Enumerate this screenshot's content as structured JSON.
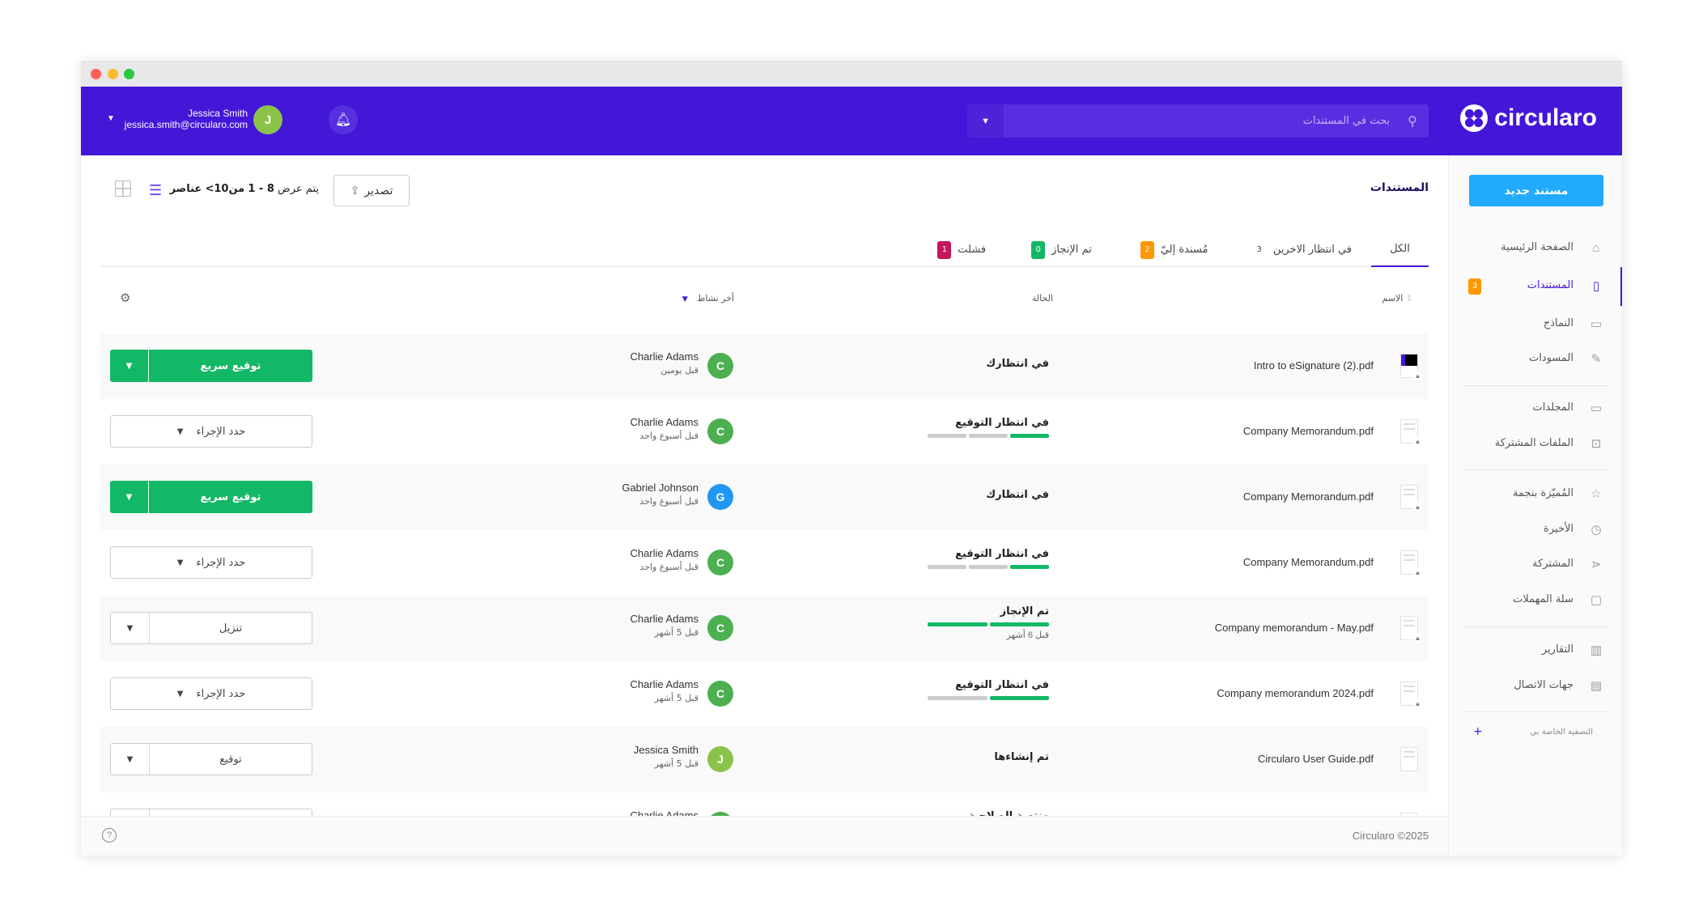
{
  "header": {
    "logo": "circularo",
    "search_placeholder": "بحث في المستندات",
    "user_name": "Jessica Smith",
    "user_email": "jessica.smith@circularo.com",
    "user_initial": "J"
  },
  "sidebar": {
    "new_document": "مستند جديد",
    "items": [
      {
        "label": "الصفحة الرئيسية",
        "icon": "home-icon",
        "glyph": "⌂"
      },
      {
        "label": "المستندات",
        "icon": "document-icon",
        "glyph": "▯",
        "active": true,
        "badge": "3"
      },
      {
        "label": "النماذج",
        "icon": "template-icon",
        "glyph": "▭"
      },
      {
        "label": "المسودات",
        "icon": "edit-icon",
        "glyph": "✎"
      },
      {
        "label": "المجلدات",
        "icon": "folder-icon",
        "glyph": "▭"
      },
      {
        "label": "الملفات المشتركة",
        "icon": "shared-folder-icon",
        "glyph": "⊡"
      },
      {
        "label": "المُميّزة بنجمة",
        "icon": "star-icon",
        "glyph": "☆"
      },
      {
        "label": "الأخيرة",
        "icon": "clock-icon",
        "glyph": "◷"
      },
      {
        "label": "المشتركة",
        "icon": "share-icon",
        "glyph": "⋖"
      },
      {
        "label": "سلة المهملات",
        "icon": "trash-icon",
        "glyph": "▢"
      },
      {
        "label": "التقارير",
        "icon": "chart-icon",
        "glyph": "▥"
      },
      {
        "label": "جهات الاتصال",
        "icon": "contact-card-icon",
        "glyph": "▤"
      }
    ],
    "my_filters": "التصفية الخاصة بي"
  },
  "main": {
    "title": "المستندات",
    "export": "تصدير",
    "count_prefix": "يتم عرض",
    "count_range": "8 - 1",
    "count_of": "من10>",
    "count_suffix": "عناصر",
    "tabs": [
      {
        "label": "الكل",
        "active": true
      },
      {
        "label": "في انتظار الاخرين",
        "count": "3",
        "color": ""
      },
      {
        "label": "مُسندة إليّ",
        "count": "2",
        "color": "#ff9800"
      },
      {
        "label": "تم الإنجاز",
        "count": "0",
        "color": "#13b866"
      },
      {
        "label": "فشلت",
        "count": "1",
        "color": "#c2185b"
      }
    ],
    "columns": {
      "name": "الاسم",
      "status": "الحالة",
      "activity": "أخر نشاط"
    },
    "rows": [
      {
        "file": "Intro to eSignature (2).pdf",
        "status": "في انتظارك",
        "user": "Charlie Adams",
        "initial": "C",
        "avatar_color": "#4caf50",
        "time": "قبل يومين",
        "action": "توقيع سريع",
        "action_style": "green-split"
      },
      {
        "file": "Company Memorandum.pdf",
        "status": "في انتظار التوقيع",
        "progress": {
          "done": 1,
          "total": 3
        },
        "user": "Charlie Adams",
        "initial": "C",
        "avatar_color": "#4caf50",
        "time": "قبل أسبوع واحد",
        "action": "حدد الإجراء",
        "action_style": "select"
      },
      {
        "file": "Company Memorandum.pdf",
        "status": "في انتظارك",
        "user": "Gabriel Johnson",
        "initial": "G",
        "avatar_color": "#2196f3",
        "time": "قبل أسبوع واحد",
        "action": "توقيع سريع",
        "action_style": "green-split"
      },
      {
        "file": "Company Memorandum.pdf",
        "status": "في انتظار التوقيع",
        "progress": {
          "done": 1,
          "total": 3
        },
        "user": "Charlie Adams",
        "initial": "C",
        "avatar_color": "#4caf50",
        "time": "قبل أسبوع واحد",
        "action": "حدد الإجراء",
        "action_style": "select"
      },
      {
        "file": "Company memorandum - May.pdf",
        "status": "تم الإنجاز",
        "progress": {
          "done": 2,
          "total": 2
        },
        "status_time": "قبل 6 أشهر",
        "user": "Charlie Adams",
        "initial": "C",
        "avatar_color": "#4caf50",
        "time": "قبل 5 أشهر",
        "action": "تنزيل",
        "action_style": "white-split"
      },
      {
        "file": "Company memorandum 2024.pdf",
        "status": "في انتظار التوقيع",
        "progress": {
          "done": 1,
          "total": 2
        },
        "user": "Charlie Adams",
        "initial": "C",
        "avatar_color": "#4caf50",
        "time": "قبل 5 أشهر",
        "action": "حدد الإجراء",
        "action_style": "select"
      },
      {
        "file": "Circularo User Guide.pdf",
        "status": "تم إنشاءها",
        "user": "Jessica Smith",
        "initial": "J",
        "avatar_color": "#8bc34a",
        "time": "قبل 5 أشهر",
        "action": "توقيع",
        "action_style": "white-split"
      },
      {
        "file": "",
        "status": "منتهية الصلاحية",
        "user": "Charlie Adams",
        "initial": "C",
        "avatar_color": "#4caf50",
        "time": "",
        "action": "",
        "action_style": "white-split"
      }
    ]
  },
  "footer": {
    "copyright": "Circularo ©2025"
  },
  "colors": {
    "brand": "#4416d8",
    "primary_button": "#22aaff",
    "success": "#13b866"
  }
}
